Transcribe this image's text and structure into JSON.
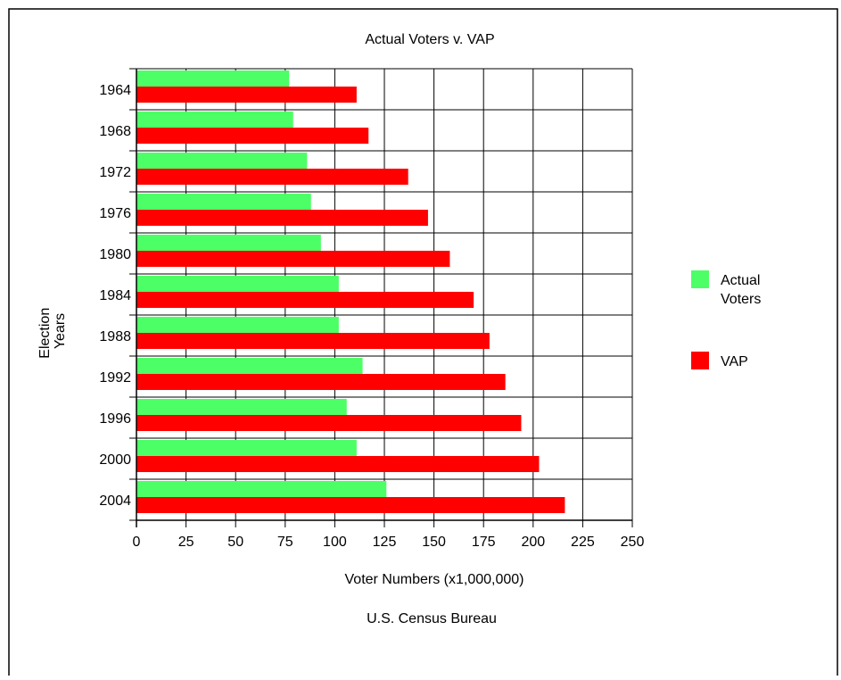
{
  "chart_data": {
    "type": "bar",
    "orientation": "horizontal",
    "title": "Actual Voters v. VAP",
    "xlabel": "Voter Numbers (x1,000,000)",
    "ylabel_lines": [
      "Election",
      "Years"
    ],
    "source": "U.S. Census Bureau",
    "categories": [
      "1964",
      "1968",
      "1972",
      "1976",
      "1980",
      "1984",
      "1988",
      "1992",
      "1996",
      "2000",
      "2004"
    ],
    "series": [
      {
        "name_lines": [
          "Actual",
          "Voters"
        ],
        "color": "#4dff66",
        "values": [
          77,
          79,
          86,
          88,
          93,
          102,
          102,
          114,
          106,
          111,
          126
        ]
      },
      {
        "name_lines": [
          "VAP"
        ],
        "color": "#ff0000",
        "values": [
          111,
          117,
          137,
          147,
          158,
          170,
          178,
          186,
          194,
          203,
          216
        ]
      }
    ],
    "xlim": [
      0,
      250
    ],
    "xticks": [
      0,
      25,
      50,
      75,
      100,
      125,
      150,
      175,
      200,
      225,
      250
    ],
    "grid": true,
    "legend_position": "right"
  }
}
